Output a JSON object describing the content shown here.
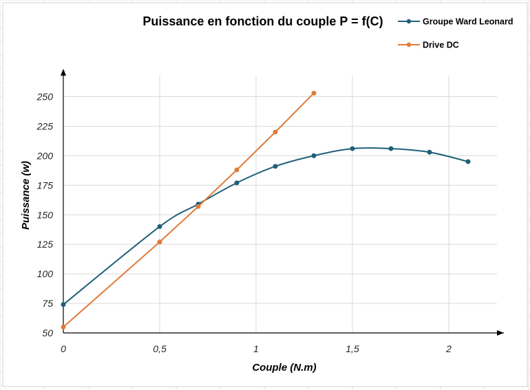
{
  "chart_data": {
    "type": "line",
    "title": "Puissance en fonction du couple P = f(C)",
    "xlabel": "Couple (N.m)",
    "ylabel": "Puissance (w)",
    "xlim": [
      0,
      2.3
    ],
    "ylim": [
      50,
      265
    ],
    "x_ticks": [
      0,
      0.5,
      1,
      1.5,
      2
    ],
    "x_tick_labels": [
      "0",
      "0,5",
      "1",
      "1,5",
      "2"
    ],
    "y_ticks": [
      50,
      75,
      100,
      125,
      150,
      175,
      200,
      225,
      250
    ],
    "y_tick_labels": [
      "50",
      "75",
      "100",
      "125",
      "150",
      "175",
      "200",
      "225",
      "250"
    ],
    "grid": true,
    "legend_position": "top-right",
    "series": [
      {
        "name": "Groupe Ward Leonard",
        "color": "#1f5f7a",
        "smooth": true,
        "x": [
          0,
          0.5,
          0.7,
          0.9,
          1.1,
          1.3,
          1.5,
          1.7,
          1.9,
          2.1
        ],
        "y": [
          74,
          140,
          159,
          177,
          191,
          200,
          206,
          206,
          203,
          195
        ]
      },
      {
        "name": "Drive DC",
        "color": "#e07b39",
        "smooth": false,
        "x": [
          0,
          0.5,
          0.7,
          0.9,
          1.1,
          1.3
        ],
        "y": [
          55,
          127,
          157,
          188,
          220,
          253
        ]
      }
    ]
  }
}
